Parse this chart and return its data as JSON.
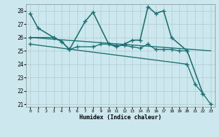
{
  "xlabel": "Humidex (Indice chaleur)",
  "background_color": "#cce8ee",
  "grid_color": "#aacccc",
  "line_color": "#1a7070",
  "xlim": [
    -0.5,
    23.5
  ],
  "ylim": [
    20.8,
    28.5
  ],
  "yticks": [
    21,
    22,
    23,
    24,
    25,
    26,
    27,
    28
  ],
  "xticks": [
    0,
    1,
    2,
    3,
    4,
    5,
    6,
    7,
    8,
    9,
    10,
    11,
    12,
    13,
    14,
    15,
    16,
    17,
    18,
    19,
    20,
    21,
    22,
    23
  ],
  "series": [
    {
      "x": [
        0,
        1,
        3,
        4,
        5,
        7,
        8,
        10,
        11,
        12,
        13,
        14,
        15,
        16,
        17,
        18,
        20,
        22
      ],
      "y": [
        27.8,
        26.7,
        26.0,
        25.7,
        25.1,
        27.2,
        27.9,
        25.5,
        25.3,
        25.5,
        25.8,
        25.8,
        28.3,
        27.8,
        28.0,
        26.0,
        25.0,
        21.8
      ],
      "marker": "+",
      "linewidth": 1.2,
      "markersize": 4
    },
    {
      "x": [
        0,
        3,
        4,
        5,
        6,
        8,
        9,
        10,
        11,
        12,
        13,
        14,
        15,
        16,
        17,
        18,
        19,
        20
      ],
      "y": [
        26.0,
        26.0,
        25.7,
        25.1,
        25.3,
        25.3,
        25.5,
        25.5,
        25.4,
        25.4,
        25.3,
        25.2,
        25.5,
        25.1,
        25.1,
        25.1,
        25.0,
        25.0
      ],
      "marker": "+",
      "linewidth": 1.0,
      "markersize": 4
    },
    {
      "x": [
        0,
        23
      ],
      "y": [
        26.0,
        25.0
      ],
      "marker": null,
      "linewidth": 1.0,
      "markersize": 0
    },
    {
      "x": [
        0,
        20,
        21,
        22,
        23
      ],
      "y": [
        25.5,
        24.0,
        22.5,
        21.8,
        21.0
      ],
      "marker": "+",
      "linewidth": 1.0,
      "markersize": 4
    }
  ]
}
